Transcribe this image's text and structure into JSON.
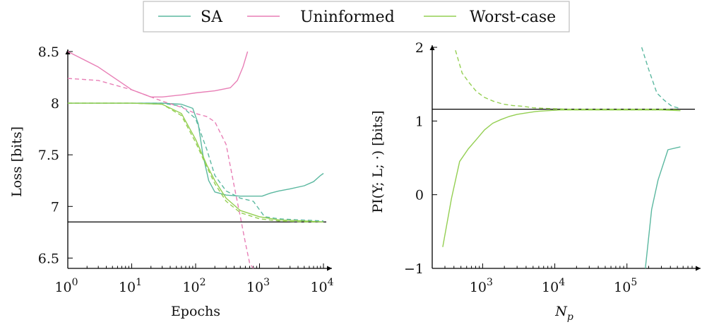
{
  "colors": {
    "SA": "#5bb8a0",
    "Uninformed": "#e87fb6",
    "Worst-case": "#94cf52"
  },
  "legend": [
    "SA",
    "Uninformed",
    "Worst-case"
  ],
  "chart_data": [
    {
      "type": "line",
      "xlabel": "Epochs",
      "ylabel": "Loss [bits]",
      "xscale": "log",
      "xlim": [
        1,
        10000
      ],
      "ylim": [
        6.4,
        8.5
      ],
      "xticks": [
        1,
        10,
        100,
        1000,
        10000
      ],
      "xtick_labels": [
        {
          "b": "10",
          "e": "0"
        },
        {
          "b": "10",
          "e": "1"
        },
        {
          "b": "10",
          "e": "2"
        },
        {
          "b": "10",
          "e": "3"
        },
        {
          "b": "10",
          "e": "4"
        }
      ],
      "yticks": [
        6.5,
        7,
        7.5,
        8,
        8.5
      ],
      "ytick_labels": [
        "6.5",
        "7",
        "7.5",
        "8",
        "8.5"
      ],
      "hline": 6.85,
      "series": [
        {
          "name": "SA",
          "style": "solid",
          "x": [
            1,
            10,
            30,
            60,
            90,
            110,
            130,
            160,
            200,
            300,
            500,
            800,
            1100,
            1500,
            2000,
            3000,
            5000,
            7000,
            9000,
            10000
          ],
          "y": [
            8.0,
            8.0,
            8.0,
            7.99,
            7.95,
            7.8,
            7.5,
            7.25,
            7.14,
            7.11,
            7.1,
            7.1,
            7.1,
            7.13,
            7.15,
            7.17,
            7.2,
            7.24,
            7.3,
            7.32
          ]
        },
        {
          "name": "SA",
          "style": "dashed",
          "x": [
            1,
            10,
            30,
            60,
            100,
            150,
            200,
            300,
            500,
            800,
            1200,
            2000,
            4000,
            10000
          ],
          "y": [
            8.0,
            8.0,
            8.0,
            7.97,
            7.85,
            7.55,
            7.3,
            7.15,
            7.08,
            7.05,
            6.9,
            6.88,
            6.87,
            6.86
          ]
        },
        {
          "name": "Uninformed",
          "style": "solid",
          "x": [
            1,
            3,
            10,
            20,
            30,
            60,
            100,
            200,
            350,
            450,
            550,
            650
          ],
          "y": [
            8.5,
            8.35,
            8.13,
            8.06,
            8.06,
            8.08,
            8.1,
            8.12,
            8.15,
            8.22,
            8.35,
            8.5
          ]
        },
        {
          "name": "Uninformed",
          "style": "dashed",
          "x": [
            1,
            3,
            10,
            30,
            60,
            100,
            150,
            200,
            300,
            400,
            500,
            600,
            700,
            800
          ],
          "y": [
            8.24,
            8.22,
            8.13,
            8.02,
            7.96,
            7.9,
            7.87,
            7.82,
            7.6,
            7.2,
            6.9,
            6.65,
            6.45,
            6.4
          ]
        },
        {
          "name": "Worst-case",
          "style": "solid",
          "x": [
            1,
            10,
            30,
            60,
            100,
            150,
            200,
            300,
            500,
            1000,
            2000,
            5000,
            10000
          ],
          "y": [
            8.0,
            8.0,
            7.99,
            7.9,
            7.65,
            7.4,
            7.25,
            7.08,
            6.96,
            6.9,
            6.87,
            6.86,
            6.85
          ]
        },
        {
          "name": "Worst-case",
          "style": "dashed",
          "x": [
            1,
            10,
            30,
            60,
            100,
            150,
            200,
            300,
            500,
            1000,
            2000,
            5000,
            10000
          ],
          "y": [
            8.0,
            8.0,
            7.99,
            7.88,
            7.62,
            7.38,
            7.22,
            7.05,
            6.94,
            6.88,
            6.86,
            6.85,
            6.85
          ]
        }
      ]
    },
    {
      "type": "line",
      "xlabel": "N_p",
      "ylabel": "PI(Y; L; ·) [bits]",
      "xscale": "log",
      "xlim": [
        200,
        800000
      ],
      "ylim": [
        -1,
        2
      ],
      "xticks": [
        1000,
        10000,
        100000
      ],
      "xtick_labels": [
        {
          "b": "10",
          "e": "3"
        },
        {
          "b": "10",
          "e": "4"
        },
        {
          "b": "10",
          "e": "5"
        }
      ],
      "yticks": [
        -1,
        0,
        1,
        2
      ],
      "ytick_labels": [
        "−1",
        "0",
        "1",
        "2"
      ],
      "hline": 1.16,
      "series": [
        {
          "name": "SA",
          "style": "solid",
          "x": [
            180000,
            220000,
            270000,
            370000,
            550000
          ],
          "y": [
            -1.0,
            -0.2,
            0.2,
            0.61,
            0.65
          ]
        },
        {
          "name": "SA",
          "style": "dashed",
          "x": [
            160000,
            200000,
            260000,
            330000,
            420000,
            550000
          ],
          "y": [
            2.0,
            1.7,
            1.38,
            1.28,
            1.2,
            1.17
          ]
        },
        {
          "name": "Worst-case",
          "style": "solid",
          "x": [
            280,
            370,
            480,
            630,
            820,
            1060,
            1380,
            1800,
            2300,
            3000,
            4000,
            5500,
            8000,
            12000,
            20000,
            40000,
            100000,
            300000,
            550000
          ],
          "y": [
            -0.71,
            -0.05,
            0.45,
            0.62,
            0.75,
            0.88,
            0.97,
            1.02,
            1.06,
            1.09,
            1.11,
            1.13,
            1.14,
            1.15,
            1.15,
            1.15,
            1.15,
            1.15,
            1.14
          ]
        },
        {
          "name": "Worst-case",
          "style": "dashed",
          "x": [
            420,
            520,
            650,
            820,
            1060,
            1400,
            1900,
            2600,
            3600,
            5000,
            8000,
            15000,
            40000,
            100000,
            300000,
            550000
          ],
          "y": [
            1.96,
            1.65,
            1.52,
            1.4,
            1.32,
            1.27,
            1.23,
            1.21,
            1.2,
            1.18,
            1.17,
            1.16,
            1.16,
            1.16,
            1.16,
            1.15
          ]
        }
      ]
    }
  ]
}
